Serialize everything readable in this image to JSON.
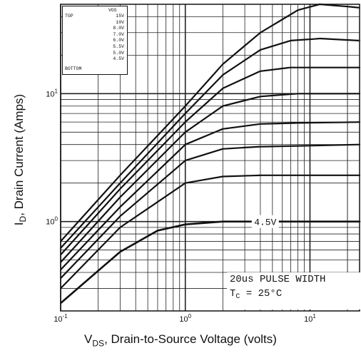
{
  "chart_data": {
    "type": "line",
    "title": "",
    "xlabel_main": "V",
    "xlabel_sub": "DS",
    "xlabel_rest": ", Drain-to-Source Voltage (volts)",
    "ylabel_main": "I",
    "ylabel_sub": "D",
    "ylabel_rest": ", Drain Current (Amps)",
    "x_scale": "log",
    "y_scale": "log",
    "xlim": [
      0.1,
      25
    ],
    "ylim": [
      0.2,
      50
    ],
    "x_ticks": [
      {
        "value": 0.1,
        "label": "10",
        "exp": "-1"
      },
      {
        "value": 1,
        "label": "10",
        "exp": "0"
      },
      {
        "value": 10,
        "label": "10",
        "exp": "1"
      }
    ],
    "y_ticks": [
      {
        "value": 1,
        "label": "10",
        "exp": "0"
      },
      {
        "value": 10,
        "label": "10",
        "exp": "1"
      }
    ],
    "grid": true,
    "legend": {
      "header": "VGS",
      "top_label": "TOP",
      "bottom_label": "BOTTOM",
      "entries": [
        "15V",
        "10V",
        "8.0V",
        "7.0V",
        "6.0V",
        "5.5V",
        "5.0V",
        "4.5V"
      ]
    },
    "series": [
      {
        "gate_voltage": 15,
        "values": [
          [
            0.1,
            0.7
          ],
          [
            0.3,
            2.3
          ],
          [
            1,
            8.0
          ],
          [
            2,
            17
          ],
          [
            4,
            30
          ],
          [
            8,
            45
          ],
          [
            12,
            50
          ],
          [
            20,
            48
          ],
          [
            25,
            47
          ]
        ]
      },
      {
        "gate_voltage": 10,
        "values": [
          [
            0.1,
            0.62
          ],
          [
            0.3,
            2.0
          ],
          [
            1,
            7.0
          ],
          [
            2,
            14
          ],
          [
            4,
            22
          ],
          [
            7,
            26
          ],
          [
            12,
            27
          ],
          [
            25,
            26
          ]
        ]
      },
      {
        "gate_voltage": 8,
        "values": [
          [
            0.1,
            0.55
          ],
          [
            0.3,
            1.8
          ],
          [
            1,
            6.0
          ],
          [
            2,
            11
          ],
          [
            4,
            15
          ],
          [
            7,
            16
          ],
          [
            12,
            16
          ],
          [
            25,
            16
          ]
        ]
      },
      {
        "gate_voltage": 7,
        "values": [
          [
            0.1,
            0.48
          ],
          [
            0.3,
            1.55
          ],
          [
            1,
            5.0
          ],
          [
            2,
            8.0
          ],
          [
            4,
            9.5
          ],
          [
            8,
            10
          ],
          [
            25,
            10
          ]
        ]
      },
      {
        "gate_voltage": 6,
        "values": [
          [
            0.1,
            0.42
          ],
          [
            0.3,
            1.3
          ],
          [
            1,
            4.0
          ],
          [
            2,
            5.3
          ],
          [
            4,
            5.8
          ],
          [
            8,
            5.9
          ],
          [
            25,
            6.0
          ]
        ]
      },
      {
        "gate_voltage": 5.5,
        "values": [
          [
            0.1,
            0.36
          ],
          [
            0.3,
            1.1
          ],
          [
            1,
            3.0
          ],
          [
            2,
            3.7
          ],
          [
            4,
            3.85
          ],
          [
            8,
            3.9
          ],
          [
            25,
            4.0
          ]
        ]
      },
      {
        "gate_voltage": 5,
        "values": [
          [
            0.1,
            0.3
          ],
          [
            0.3,
            0.9
          ],
          [
            1,
            2.0
          ],
          [
            2,
            2.25
          ],
          [
            4,
            2.3
          ],
          [
            25,
            2.3
          ]
        ]
      },
      {
        "gate_voltage": 4.5,
        "values": [
          [
            0.1,
            0.23
          ],
          [
            0.3,
            0.58
          ],
          [
            0.6,
            0.85
          ],
          [
            1,
            0.95
          ],
          [
            2,
            1.0
          ],
          [
            25,
            1.0
          ]
        ]
      }
    ],
    "annotations": {
      "curve_label": "4.5V",
      "note_line1": "20us PULSE WIDTH",
      "note_tc_main": "T",
      "note_tc_sub": "C",
      "note_tc_rest": " = 25°C"
    }
  }
}
